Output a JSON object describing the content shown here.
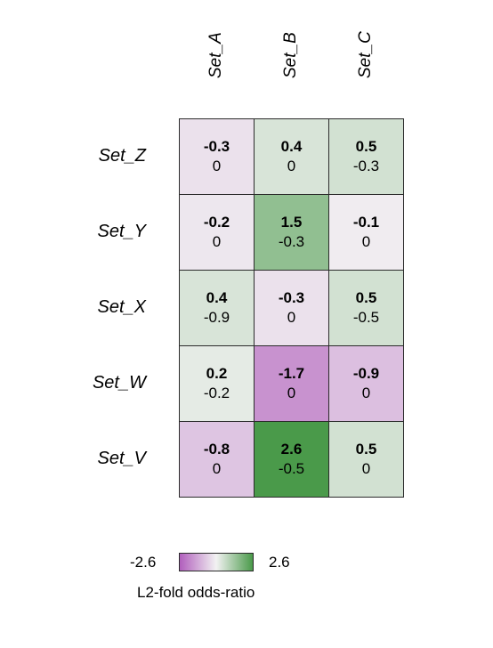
{
  "chart_data": {
    "type": "heatmap",
    "columns": [
      "Set_A",
      "Set_B",
      "Set_C"
    ],
    "rows": [
      "Set_Z",
      "Set_Y",
      "Set_X",
      "Set_W",
      "Set_V"
    ],
    "values_top": [
      [
        "-0.3",
        "0.4",
        "0.5"
      ],
      [
        "-0.2",
        "1.5",
        "-0.1"
      ],
      [
        "0.4",
        "-0.3",
        "0.5"
      ],
      [
        "0.2",
        "-1.7",
        "-0.9"
      ],
      [
        "-0.8",
        "2.6",
        "0.5"
      ]
    ],
    "values_bottom": [
      [
        "0",
        "0",
        "-0.3"
      ],
      [
        "0",
        "-0.3",
        "0"
      ],
      [
        "-0.9",
        "0",
        "-0.5"
      ],
      [
        "-0.2",
        "0",
        "0"
      ],
      [
        "0",
        "-0.5",
        "0"
      ]
    ],
    "color_scale": {
      "min": -2.6,
      "max": 2.6,
      "min_label": "-2.6",
      "max_label": "2.6",
      "low_color": "#b15fbd",
      "mid_color": "#f2f2f2",
      "high_color": "#4a9a4a",
      "title": "L2-fold odds-ratio"
    }
  }
}
